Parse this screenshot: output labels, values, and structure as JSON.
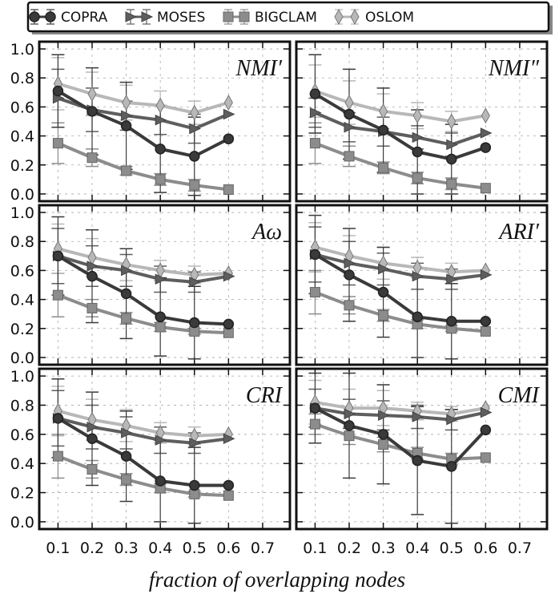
{
  "chart_data": {
    "type": "line",
    "layout": "3x2 grid of line charts with error bars, shared legend on top",
    "xlabel": "fraction of overlapping nodes",
    "x_ticks": [
      "0.1",
      "0.2",
      "0.3",
      "0.4",
      "0.5",
      "0.6",
      "0.7"
    ],
    "y_ticks": [
      "0.0",
      "0.2",
      "0.4",
      "0.6",
      "0.8",
      "1.0"
    ],
    "xlim": [
      0.045,
      0.78
    ],
    "ylim": [
      -0.05,
      1.05
    ],
    "grid": true,
    "legend": {
      "position": "top",
      "entries": [
        {
          "name": "COPRA",
          "marker": "circle",
          "color": "#3a3a3a"
        },
        {
          "name": "MOSES",
          "marker": "triangle-right",
          "color": "#5e5e5e"
        },
        {
          "name": "BIGCLAM",
          "marker": "square",
          "color": "#8c8c8c"
        },
        {
          "name": "OSLOM",
          "marker": "diamond",
          "color": "#b8b8b8"
        }
      ]
    },
    "x": [
      0.1,
      0.2,
      0.3,
      0.4,
      0.5,
      0.6
    ],
    "panels": [
      {
        "title": "NMI′",
        "series": [
          {
            "name": "COPRA",
            "values": [
              0.71,
              0.57,
              0.47,
              0.31,
              0.26,
              0.38
            ],
            "err": [
              0.25,
              0.3,
              0.3,
              0.3,
              0.27,
              0.0
            ]
          },
          {
            "name": "MOSES",
            "values": [
              0.66,
              0.58,
              0.54,
              0.51,
              0.45,
              0.55
            ],
            "err": [
              0.2,
              0.15,
              0.1,
              0.1,
              0.1,
              0.0
            ]
          },
          {
            "name": "BIGCLAM",
            "values": [
              0.35,
              0.25,
              0.16,
              0.1,
              0.06,
              0.03
            ],
            "err": [
              0.14,
              0.06,
              0.03,
              0.04,
              0.04,
              0.0
            ]
          },
          {
            "name": "OSLOM",
            "values": [
              0.76,
              0.69,
              0.63,
              0.61,
              0.56,
              0.63
            ],
            "err": [
              0.18,
              0.15,
              0.12,
              0.1,
              0.08,
              0.0
            ]
          }
        ]
      },
      {
        "title": "NMI″",
        "series": [
          {
            "name": "COPRA",
            "values": [
              0.69,
              0.55,
              0.44,
              0.29,
              0.24,
              0.32
            ],
            "err": [
              0.27,
              0.31,
              0.29,
              0.29,
              0.24,
              0.0
            ]
          },
          {
            "name": "MOSES",
            "values": [
              0.56,
              0.46,
              0.43,
              0.39,
              0.34,
              0.42
            ],
            "err": [
              0.1,
              0.1,
              0.1,
              0.08,
              0.08,
              0.0
            ]
          },
          {
            "name": "BIGCLAM",
            "values": [
              0.35,
              0.26,
              0.18,
              0.11,
              0.07,
              0.04
            ],
            "err": [
              0.14,
              0.07,
              0.04,
              0.04,
              0.04,
              0.0
            ]
          },
          {
            "name": "OSLOM",
            "values": [
              0.71,
              0.63,
              0.57,
              0.54,
              0.5,
              0.54
            ],
            "err": [
              0.18,
              0.15,
              0.12,
              0.09,
              0.07,
              0.0
            ]
          }
        ]
      },
      {
        "title": "Aω",
        "series": [
          {
            "name": "COPRA",
            "values": [
              0.7,
              0.56,
              0.44,
              0.28,
              0.24,
              0.23
            ],
            "err": [
              0.27,
              0.32,
              0.31,
              0.27,
              0.25,
              0.0
            ]
          },
          {
            "name": "MOSES",
            "values": [
              0.7,
              0.63,
              0.6,
              0.54,
              0.52,
              0.56
            ],
            "err": [
              0.19,
              0.14,
              0.11,
              0.09,
              0.07,
              0.0
            ]
          },
          {
            "name": "BIGCLAM",
            "values": [
              0.43,
              0.34,
              0.27,
              0.21,
              0.18,
              0.17
            ],
            "err": [
              0.15,
              0.06,
              0.04,
              0.03,
              0.02,
              0.0
            ]
          },
          {
            "name": "OSLOM",
            "values": [
              0.75,
              0.69,
              0.64,
              0.6,
              0.57,
              0.58
            ],
            "err": [
              0.17,
              0.13,
              0.11,
              0.07,
              0.06,
              0.0
            ]
          }
        ]
      },
      {
        "title": "ARI′",
        "series": [
          {
            "name": "COPRA",
            "values": [
              0.71,
              0.57,
              0.45,
              0.28,
              0.25,
              0.25
            ],
            "err": [
              0.27,
              0.32,
              0.31,
              0.28,
              0.26,
              0.0
            ]
          },
          {
            "name": "MOSES",
            "values": [
              0.71,
              0.65,
              0.61,
              0.56,
              0.54,
              0.57
            ],
            "err": [
              0.19,
              0.15,
              0.11,
              0.09,
              0.07,
              0.0
            ]
          },
          {
            "name": "BIGCLAM",
            "values": [
              0.45,
              0.36,
              0.29,
              0.23,
              0.2,
              0.18
            ],
            "err": [
              0.15,
              0.06,
              0.04,
              0.03,
              0.02,
              0.0
            ]
          },
          {
            "name": "OSLOM",
            "values": [
              0.76,
              0.7,
              0.65,
              0.62,
              0.59,
              0.6
            ],
            "err": [
              0.17,
              0.14,
              0.11,
              0.07,
              0.06,
              0.0
            ]
          }
        ]
      },
      {
        "title": "CRI",
        "series": [
          {
            "name": "COPRA",
            "values": [
              0.71,
              0.57,
              0.45,
              0.28,
              0.25,
              0.25
            ],
            "err": [
              0.27,
              0.32,
              0.31,
              0.28,
              0.26,
              0.0
            ]
          },
          {
            "name": "MOSES",
            "values": [
              0.71,
              0.65,
              0.61,
              0.56,
              0.54,
              0.57
            ],
            "err": [
              0.19,
              0.15,
              0.11,
              0.09,
              0.07,
              0.0
            ]
          },
          {
            "name": "BIGCLAM",
            "values": [
              0.45,
              0.36,
              0.29,
              0.23,
              0.19,
              0.18
            ],
            "err": [
              0.15,
              0.06,
              0.04,
              0.03,
              0.02,
              0.0
            ]
          },
          {
            "name": "OSLOM",
            "values": [
              0.76,
              0.7,
              0.66,
              0.61,
              0.59,
              0.6
            ],
            "err": [
              0.17,
              0.14,
              0.11,
              0.07,
              0.06,
              0.0
            ]
          }
        ]
      },
      {
        "title": "CMI",
        "series": [
          {
            "name": "COPRA",
            "values": [
              0.78,
              0.66,
              0.6,
              0.42,
              0.38,
              0.63
            ],
            "err": [
              0.24,
              0.36,
              0.34,
              0.37,
              0.39,
              0.0
            ]
          },
          {
            "name": "MOSES",
            "values": [
              0.78,
              0.74,
              0.73,
              0.72,
              0.7,
              0.75
            ],
            "err": [
              0.13,
              0.1,
              0.1,
              0.08,
              0.07,
              0.0
            ]
          },
          {
            "name": "BIGCLAM",
            "values": [
              0.67,
              0.59,
              0.53,
              0.47,
              0.43,
              0.44
            ],
            "err": [
              0.07,
              0.06,
              0.05,
              0.04,
              0.04,
              0.0
            ]
          },
          {
            "name": "OSLOM",
            "values": [
              0.82,
              0.78,
              0.78,
              0.76,
              0.74,
              0.78
            ],
            "err": [
              0.15,
              0.13,
              0.12,
              0.06,
              0.05,
              0.0
            ]
          }
        ]
      }
    ]
  }
}
